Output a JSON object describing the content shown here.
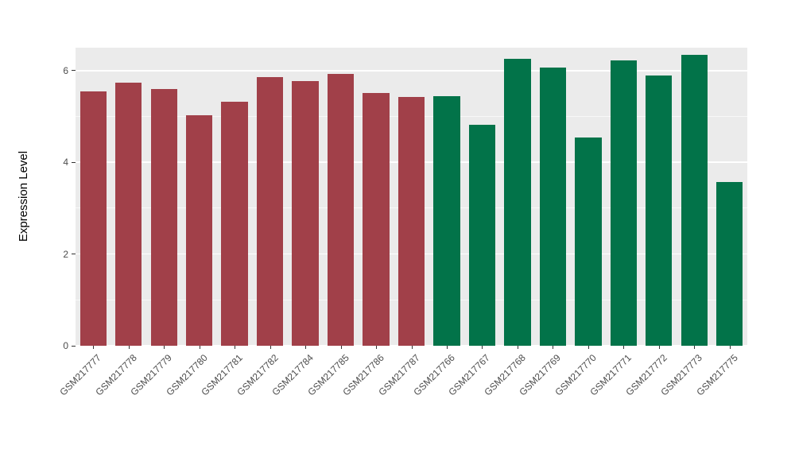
{
  "chart_data": {
    "type": "bar",
    "title": "",
    "xlabel": "",
    "ylabel": "Expression Level",
    "ylim": [
      0,
      6.5
    ],
    "yticks_major": [
      0,
      2,
      4,
      6
    ],
    "yticks_minor": [
      1,
      3,
      5
    ],
    "grid": true,
    "legend": "none",
    "panel_background": "#EBEBEB",
    "gridline_color": "#FFFFFF",
    "bar_groups": {
      "maroon": "#A14049",
      "green": "#027349"
    },
    "bars": [
      {
        "label": "GSM217777",
        "value": 5.55,
        "group": "maroon"
      },
      {
        "label": "GSM217778",
        "value": 5.73,
        "group": "maroon"
      },
      {
        "label": "GSM217779",
        "value": 5.6,
        "group": "maroon"
      },
      {
        "label": "GSM217780",
        "value": 5.02,
        "group": "maroon"
      },
      {
        "label": "GSM217781",
        "value": 5.33,
        "group": "maroon"
      },
      {
        "label": "GSM217782",
        "value": 5.86,
        "group": "maroon"
      },
      {
        "label": "GSM217784",
        "value": 5.77,
        "group": "maroon"
      },
      {
        "label": "GSM217785",
        "value": 5.92,
        "group": "maroon"
      },
      {
        "label": "GSM217786",
        "value": 5.52,
        "group": "maroon"
      },
      {
        "label": "GSM217787",
        "value": 5.43,
        "group": "maroon"
      },
      {
        "label": "GSM217766",
        "value": 5.44,
        "group": "green"
      },
      {
        "label": "GSM217767",
        "value": 4.82,
        "group": "green"
      },
      {
        "label": "GSM217768",
        "value": 6.26,
        "group": "green"
      },
      {
        "label": "GSM217769",
        "value": 6.06,
        "group": "green"
      },
      {
        "label": "GSM217770",
        "value": 4.55,
        "group": "green"
      },
      {
        "label": "GSM217771",
        "value": 6.23,
        "group": "green"
      },
      {
        "label": "GSM217772",
        "value": 5.89,
        "group": "green"
      },
      {
        "label": "GSM217773",
        "value": 6.34,
        "group": "green"
      },
      {
        "label": "GSM217775",
        "value": 3.57,
        "group": "green"
      }
    ]
  }
}
